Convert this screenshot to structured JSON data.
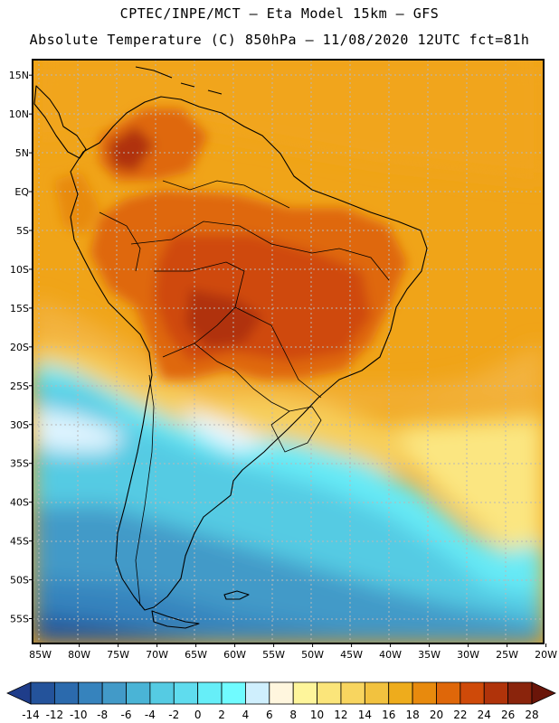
{
  "header": {
    "title_line1": "CPTEC/INPE/MCT –  Eta Model 15km – GFS",
    "title_line2": "Absolute Temperature (C) 850hPa – 11/08/2020 12UTC fct=81h"
  },
  "map": {
    "lat_labels": [
      "15N",
      "10N",
      "5N",
      "EQ",
      "5S",
      "10S",
      "15S",
      "20S",
      "25S",
      "30S",
      "35S",
      "40S",
      "45S",
      "50S",
      "55S"
    ],
    "lon_labels": [
      "85W",
      "80W",
      "75W",
      "70W",
      "65W",
      "60W",
      "55W",
      "50W",
      "45W",
      "40W",
      "35W",
      "30W",
      "25W",
      "20W"
    ],
    "lat_values": [
      15,
      10,
      5,
      0,
      -5,
      -10,
      -15,
      -20,
      -25,
      -30,
      -35,
      -40,
      -45,
      -50,
      -55
    ],
    "lon_values": [
      -85,
      -80,
      -75,
      -70,
      -65,
      -60,
      -55,
      -50,
      -45,
      -40,
      -35,
      -30,
      -25,
      -20
    ]
  },
  "colorbar": {
    "labels": [
      "-14",
      "-12",
      "-10",
      "-8",
      "-6",
      "-4",
      "-2",
      "0",
      "2",
      "4",
      "6",
      "8",
      "10",
      "12",
      "14",
      "16",
      "18",
      "20",
      "22",
      "24",
      "26",
      "28"
    ],
    "colors": [
      "#1f3d8a",
      "#24539b",
      "#2b6aad",
      "#3683bd",
      "#429ac8",
      "#4ab4d6",
      "#55cbe3",
      "#5fdcee",
      "#66eef8",
      "#70fbff",
      "#cfeffd",
      "#fff6de",
      "#fef59b",
      "#fbe57a",
      "#f8d55f",
      "#f2c23f",
      "#eeac1c",
      "#e88a0d",
      "#df6709",
      "#cf4a09",
      "#b0330a",
      "#8a240c",
      "#6a1509"
    ],
    "unit": "C"
  }
}
